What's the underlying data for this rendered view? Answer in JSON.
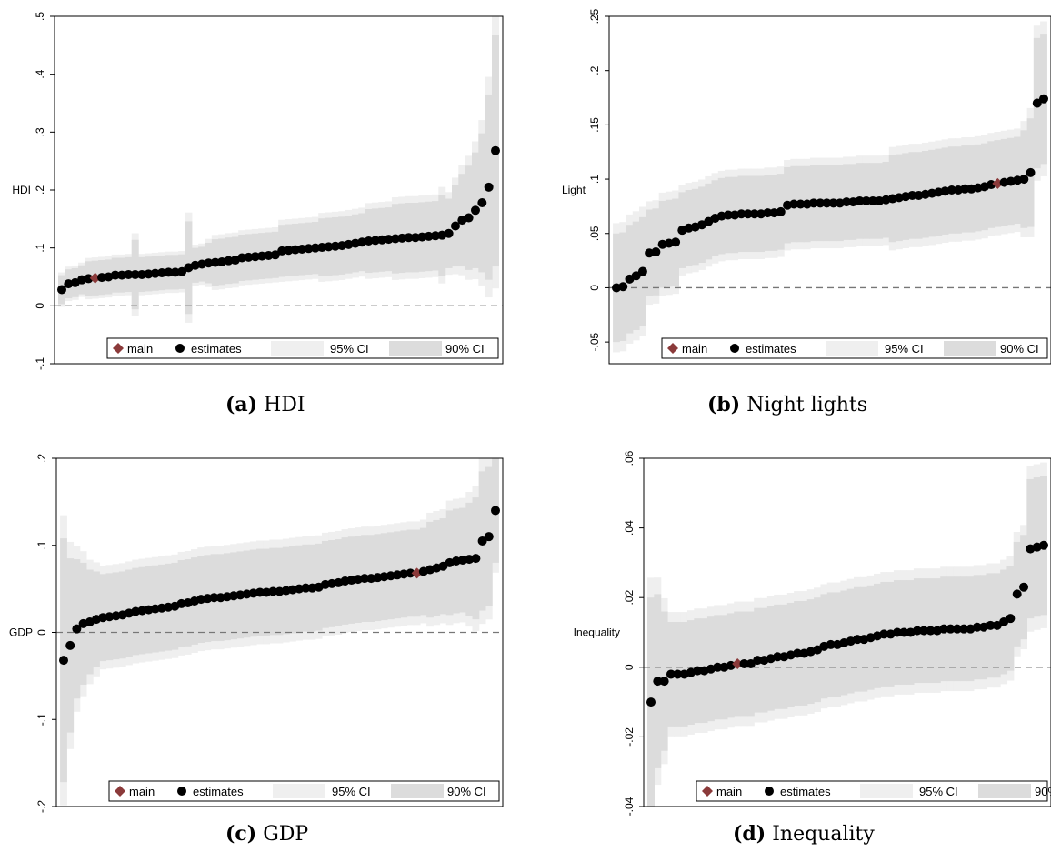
{
  "colors": {
    "main": "#8B3A3A",
    "estimates": "#000000",
    "ci95": "#EFEFEF",
    "ci90": "#DCDCDC",
    "zero_line": "#777777"
  },
  "legend": {
    "main": "main",
    "estimates": "estimates",
    "ci95": "95% CI",
    "ci90": "90% CI"
  },
  "chart_data": [
    {
      "type": "scatter",
      "caption_label": "(a)",
      "caption_text": "HDI",
      "ylabel": "HDI",
      "ylim": [
        -0.1,
        0.5
      ],
      "yticks": [
        -0.1,
        0,
        0.1,
        0.2,
        0.3,
        0.4,
        0.5
      ],
      "ytick_labels": [
        "-.1",
        "0",
        ".1",
        ".2",
        ".3",
        ".4",
        ".5"
      ],
      "grid": false,
      "legend_position": "bottom",
      "main_index": 5,
      "estimates": [
        0.028,
        0.038,
        0.04,
        0.045,
        0.047,
        0.048,
        0.049,
        0.05,
        0.053,
        0.053,
        0.054,
        0.054,
        0.054,
        0.055,
        0.056,
        0.057,
        0.058,
        0.058,
        0.059,
        0.066,
        0.07,
        0.072,
        0.074,
        0.075,
        0.076,
        0.078,
        0.079,
        0.083,
        0.084,
        0.085,
        0.086,
        0.087,
        0.088,
        0.095,
        0.096,
        0.097,
        0.098,
        0.099,
        0.1,
        0.101,
        0.102,
        0.103,
        0.104,
        0.106,
        0.108,
        0.11,
        0.112,
        0.113,
        0.114,
        0.115,
        0.116,
        0.117,
        0.118,
        0.118,
        0.119,
        0.12,
        0.121,
        0.122,
        0.125,
        0.138,
        0.148,
        0.152,
        0.165,
        0.178,
        0.205,
        0.268
      ],
      "ci90_halfwidth": [
        0.025,
        0.025,
        0.025,
        0.025,
        0.03,
        0.03,
        0.03,
        0.03,
        0.03,
        0.03,
        0.03,
        0.06,
        0.03,
        0.03,
        0.03,
        0.03,
        0.03,
        0.03,
        0.03,
        0.08,
        0.03,
        0.03,
        0.035,
        0.04,
        0.04,
        0.04,
        0.04,
        0.04,
        0.04,
        0.04,
        0.04,
        0.04,
        0.04,
        0.045,
        0.045,
        0.045,
        0.045,
        0.045,
        0.045,
        0.05,
        0.05,
        0.05,
        0.05,
        0.05,
        0.05,
        0.05,
        0.055,
        0.055,
        0.055,
        0.055,
        0.06,
        0.06,
        0.06,
        0.06,
        0.06,
        0.06,
        0.06,
        0.07,
        0.06,
        0.07,
        0.08,
        0.09,
        0.1,
        0.12,
        0.16,
        0.2
      ]
    },
    {
      "type": "scatter",
      "caption_label": "(b)",
      "caption_text": "Night lights",
      "ylabel": "Light",
      "ylim": [
        -0.07,
        0.25
      ],
      "yticks": [
        -0.05,
        0,
        0.05,
        0.1,
        0.15,
        0.2,
        0.25
      ],
      "ytick_labels": [
        "-.05",
        "0",
        ".05",
        ".1",
        ".15",
        ".2",
        ".25"
      ],
      "grid": false,
      "legend_position": "bottom",
      "main_index": 58,
      "estimates": [
        0.0,
        0.001,
        0.008,
        0.011,
        0.015,
        0.032,
        0.033,
        0.04,
        0.041,
        0.042,
        0.053,
        0.055,
        0.056,
        0.058,
        0.061,
        0.064,
        0.066,
        0.067,
        0.067,
        0.068,
        0.068,
        0.068,
        0.068,
        0.069,
        0.069,
        0.07,
        0.076,
        0.077,
        0.077,
        0.077,
        0.078,
        0.078,
        0.078,
        0.078,
        0.078,
        0.079,
        0.079,
        0.08,
        0.08,
        0.08,
        0.08,
        0.081,
        0.082,
        0.083,
        0.084,
        0.085,
        0.085,
        0.086,
        0.087,
        0.088,
        0.089,
        0.09,
        0.09,
        0.091,
        0.091,
        0.092,
        0.093,
        0.095,
        0.096,
        0.097,
        0.098,
        0.099,
        0.1,
        0.106,
        0.17,
        0.174
      ],
      "ci90_halfwidth": [
        0.05,
        0.05,
        0.05,
        0.05,
        0.05,
        0.04,
        0.04,
        0.04,
        0.04,
        0.04,
        0.035,
        0.035,
        0.035,
        0.035,
        0.035,
        0.035,
        0.035,
        0.035,
        0.035,
        0.035,
        0.035,
        0.035,
        0.035,
        0.035,
        0.035,
        0.035,
        0.035,
        0.035,
        0.035,
        0.035,
        0.035,
        0.035,
        0.035,
        0.035,
        0.035,
        0.035,
        0.035,
        0.035,
        0.035,
        0.035,
        0.035,
        0.035,
        0.04,
        0.04,
        0.04,
        0.04,
        0.04,
        0.04,
        0.04,
        0.04,
        0.04,
        0.04,
        0.04,
        0.04,
        0.04,
        0.04,
        0.04,
        0.04,
        0.04,
        0.04,
        0.04,
        0.04,
        0.045,
        0.05,
        0.06,
        0.06
      ]
    },
    {
      "type": "scatter",
      "caption_label": "(c)",
      "caption_text": "GDP",
      "ylabel": "GDP",
      "ylim": [
        -0.2,
        0.2
      ],
      "yticks": [
        -0.2,
        -0.1,
        0,
        0.1,
        0.2
      ],
      "ytick_labels": [
        "-.2",
        "-.1",
        "0",
        ".1",
        ".2"
      ],
      "grid": false,
      "legend_position": "bottom",
      "main_index": 54,
      "estimates": [
        -0.032,
        -0.015,
        0.004,
        0.01,
        0.012,
        0.015,
        0.017,
        0.018,
        0.019,
        0.02,
        0.022,
        0.024,
        0.025,
        0.026,
        0.027,
        0.028,
        0.029,
        0.03,
        0.033,
        0.034,
        0.036,
        0.038,
        0.039,
        0.04,
        0.04,
        0.041,
        0.042,
        0.043,
        0.044,
        0.045,
        0.046,
        0.046,
        0.047,
        0.047,
        0.048,
        0.049,
        0.05,
        0.051,
        0.051,
        0.052,
        0.055,
        0.056,
        0.057,
        0.059,
        0.06,
        0.061,
        0.062,
        0.062,
        0.063,
        0.064,
        0.065,
        0.066,
        0.067,
        0.068,
        0.068,
        0.07,
        0.072,
        0.074,
        0.076,
        0.08,
        0.082,
        0.083,
        0.084,
        0.085,
        0.105,
        0.11,
        0.14
      ],
      "ci90_halfwidth": [
        0.14,
        0.1,
        0.08,
        0.07,
        0.06,
        0.055,
        0.05,
        0.05,
        0.05,
        0.05,
        0.05,
        0.05,
        0.05,
        0.05,
        0.05,
        0.05,
        0.05,
        0.05,
        0.05,
        0.05,
        0.05,
        0.05,
        0.05,
        0.05,
        0.05,
        0.05,
        0.05,
        0.05,
        0.05,
        0.05,
        0.05,
        0.05,
        0.05,
        0.05,
        0.05,
        0.05,
        0.05,
        0.05,
        0.05,
        0.05,
        0.05,
        0.05,
        0.05,
        0.05,
        0.05,
        0.05,
        0.05,
        0.05,
        0.05,
        0.05,
        0.05,
        0.05,
        0.05,
        0.05,
        0.05,
        0.05,
        0.055,
        0.055,
        0.055,
        0.06,
        0.06,
        0.06,
        0.065,
        0.07,
        0.08,
        0.08,
        0.06
      ]
    },
    {
      "type": "scatter",
      "caption_label": "(d)",
      "caption_text": "Inequality",
      "ylabel": "Inequality",
      "ylim": [
        -0.04,
        0.06
      ],
      "yticks": [
        -0.04,
        -0.02,
        0,
        0.02,
        0.04,
        0.06
      ],
      "ytick_labels": [
        "-.04",
        "-.02",
        "0",
        ".02",
        ".04",
        ".06"
      ],
      "grid": false,
      "legend_position": "bottom",
      "main_index": 13,
      "estimates": [
        -0.01,
        -0.004,
        -0.004,
        -0.002,
        -0.002,
        -0.002,
        -0.0015,
        -0.001,
        -0.001,
        -0.0005,
        0.0,
        0.0,
        0.0005,
        0.001,
        0.001,
        0.001,
        0.002,
        0.002,
        0.0025,
        0.003,
        0.003,
        0.0035,
        0.004,
        0.004,
        0.0045,
        0.005,
        0.006,
        0.0065,
        0.0065,
        0.007,
        0.0075,
        0.008,
        0.008,
        0.0085,
        0.009,
        0.0095,
        0.0095,
        0.01,
        0.01,
        0.01,
        0.0105,
        0.0105,
        0.0105,
        0.0105,
        0.011,
        0.011,
        0.011,
        0.011,
        0.011,
        0.0115,
        0.0115,
        0.012,
        0.012,
        0.013,
        0.014,
        0.021,
        0.023,
        0.034,
        0.0345,
        0.035
      ],
      "ci90_halfwidth": [
        0.03,
        0.025,
        0.02,
        0.015,
        0.015,
        0.015,
        0.015,
        0.015,
        0.015,
        0.015,
        0.015,
        0.015,
        0.015,
        0.015,
        0.015,
        0.015,
        0.015,
        0.015,
        0.015,
        0.015,
        0.015,
        0.015,
        0.015,
        0.015,
        0.015,
        0.015,
        0.015,
        0.015,
        0.015,
        0.015,
        0.015,
        0.015,
        0.015,
        0.015,
        0.015,
        0.015,
        0.015,
        0.015,
        0.015,
        0.015,
        0.015,
        0.015,
        0.015,
        0.015,
        0.015,
        0.015,
        0.015,
        0.015,
        0.015,
        0.015,
        0.015,
        0.015,
        0.015,
        0.015,
        0.015,
        0.015,
        0.015,
        0.02,
        0.02,
        0.02
      ]
    }
  ]
}
